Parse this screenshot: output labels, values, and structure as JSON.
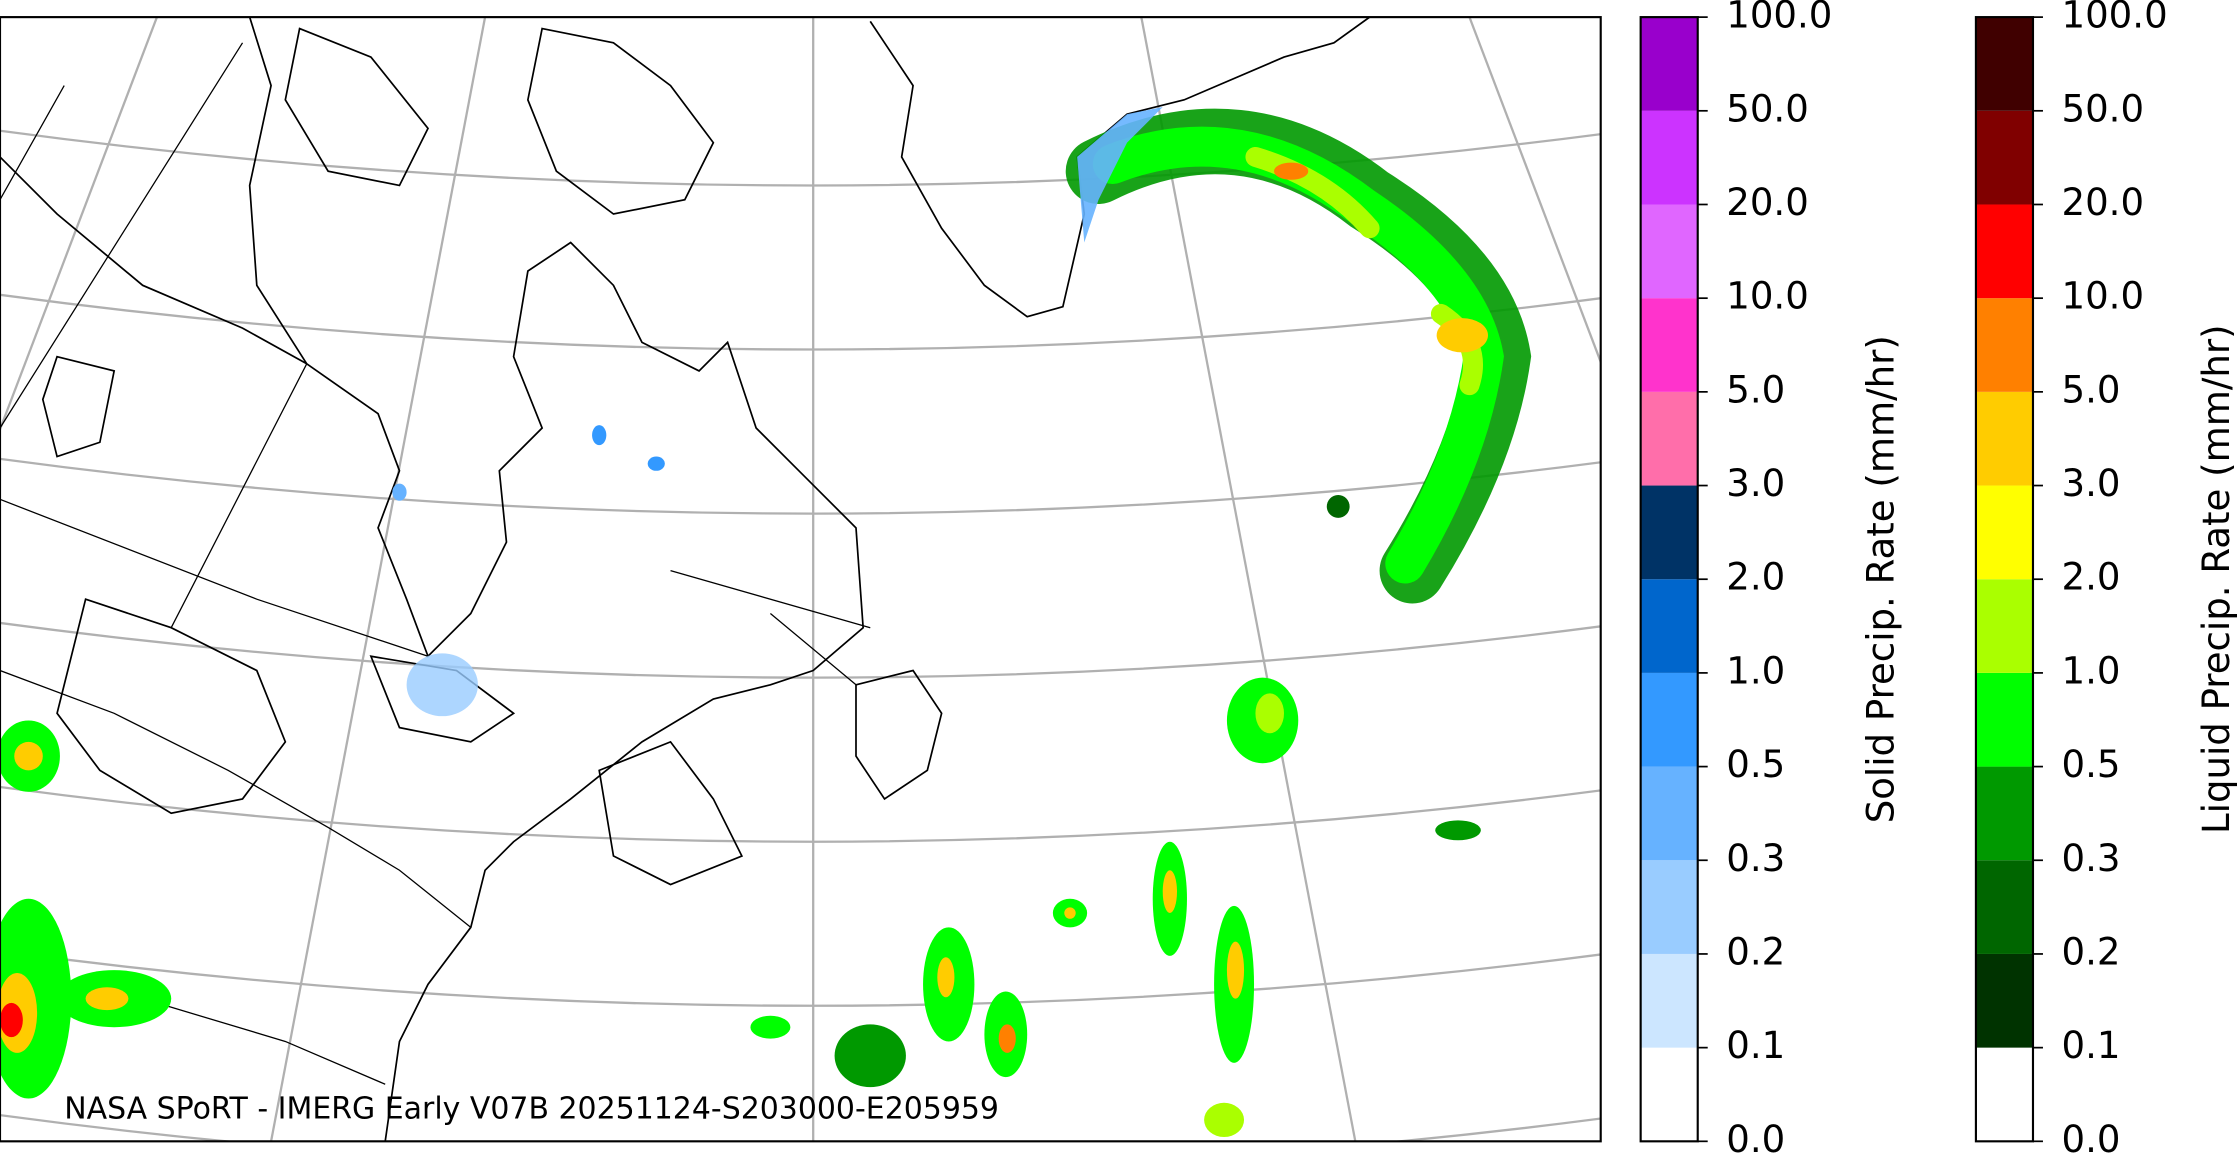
{
  "footer": "NASA SPoRT - IMERG Early V07B 20251124-S203000-E205959",
  "colorbars": [
    {
      "label": "Solid Precip. Rate (mm/hr)",
      "colors": [
        "#ffffff",
        "#cce6ff",
        "#99ccff",
        "#66b2ff",
        "#3399ff",
        "#0066cc",
        "#003366",
        "#ff6eaa",
        "#ff33cc",
        "#e066ff",
        "#cc33ff",
        "#9900cc"
      ],
      "ticks": [
        {
          "value": 0,
          "label": "0.0"
        },
        {
          "value": 0.1,
          "label": "0.1"
        },
        {
          "value": 0.2,
          "label": "0.2"
        },
        {
          "value": 0.3,
          "label": "0.3"
        },
        {
          "value": 0.5,
          "label": "0.5"
        },
        {
          "value": 1,
          "label": "1.0"
        },
        {
          "value": 2,
          "label": "2.0"
        },
        {
          "value": 3,
          "label": "3.0"
        },
        {
          "value": 5,
          "label": "5.0"
        },
        {
          "value": 10,
          "label": "10.0"
        },
        {
          "value": 20,
          "label": "20.0"
        },
        {
          "value": 50,
          "label": "50.0"
        },
        {
          "value": 100,
          "label": "100.0"
        }
      ]
    },
    {
      "label": "Liquid Precip. Rate (mm/hr)",
      "colors": [
        "#ffffff",
        "#003300",
        "#006600",
        "#009900",
        "#00ff00",
        "#aaff00",
        "#ffff00",
        "#ffcc00",
        "#ff8000",
        "#ff0000",
        "#800000",
        "#400000"
      ],
      "ticks": [
        {
          "value": 0,
          "label": "0.0"
        },
        {
          "value": 0.1,
          "label": "0.1"
        },
        {
          "value": 0.2,
          "label": "0.2"
        },
        {
          "value": 0.3,
          "label": "0.3"
        },
        {
          "value": 0.5,
          "label": "0.5"
        },
        {
          "value": 1,
          "label": "1.0"
        },
        {
          "value": 2,
          "label": "2.0"
        },
        {
          "value": 3,
          "label": "3.0"
        },
        {
          "value": 5,
          "label": "5.0"
        },
        {
          "value": 10,
          "label": "10.0"
        },
        {
          "value": 20,
          "label": "20.0"
        },
        {
          "value": 50,
          "label": "50.0"
        },
        {
          "value": 100,
          "label": "100.0"
        }
      ]
    }
  ]
}
